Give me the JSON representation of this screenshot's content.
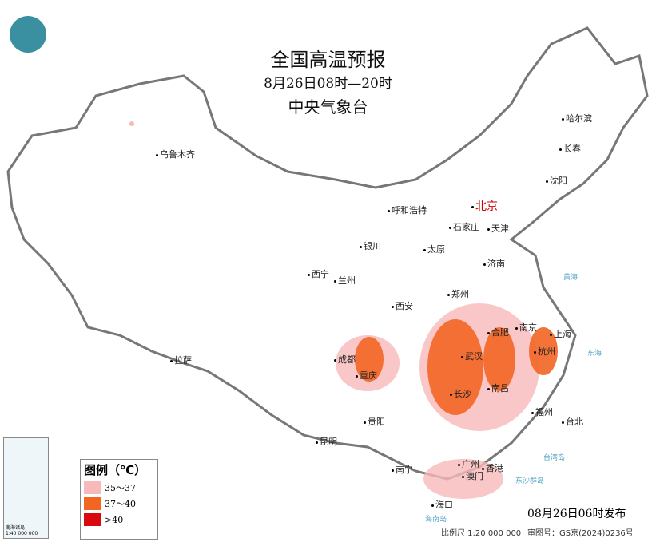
{
  "header": {
    "title": "全国高温预报",
    "subtitle": "8月26日08时—20时",
    "org": "中央气象台"
  },
  "cities": [
    {
      "name": "乌鲁木齐"
    },
    {
      "name": "哈尔滨"
    },
    {
      "name": "长春"
    },
    {
      "name": "沈阳"
    },
    {
      "name": "北京"
    },
    {
      "name": "天津"
    },
    {
      "name": "呼和浩特"
    },
    {
      "name": "石家庄"
    },
    {
      "name": "太原"
    },
    {
      "name": "银川"
    },
    {
      "name": "济南"
    },
    {
      "name": "西宁"
    },
    {
      "name": "兰州"
    },
    {
      "name": "西安"
    },
    {
      "name": "郑州"
    },
    {
      "name": "合肥"
    },
    {
      "name": "南京"
    },
    {
      "name": "上海"
    },
    {
      "name": "杭州"
    },
    {
      "name": "武汉"
    },
    {
      "name": "成都"
    },
    {
      "name": "重庆"
    },
    {
      "name": "拉萨"
    },
    {
      "name": "长沙"
    },
    {
      "name": "南昌"
    },
    {
      "name": "福州"
    },
    {
      "name": "台北"
    },
    {
      "name": "贵阳"
    },
    {
      "name": "昆明"
    },
    {
      "name": "南宁"
    },
    {
      "name": "广州"
    },
    {
      "name": "澳门"
    },
    {
      "name": "香港"
    },
    {
      "name": "海口"
    }
  ],
  "seas": [
    "黄海",
    "东海",
    "台湾岛",
    "东沙群岛",
    "海南岛"
  ],
  "legend": {
    "title": "图例（℃）",
    "items": [
      {
        "label": "35～37",
        "color": "#f7b9b9"
      },
      {
        "label": "37～40",
        "color": "#f26522"
      },
      {
        "label": ">40",
        "color": "#d9090f"
      }
    ]
  },
  "footer": {
    "published": "08月26日06时发布",
    "scale": "比例尺 1:20 000 000",
    "approval": "审图号：GS京(2024)0236号"
  },
  "inset": {
    "label": "南海诸岛",
    "scale": "1:40 000 000"
  }
}
